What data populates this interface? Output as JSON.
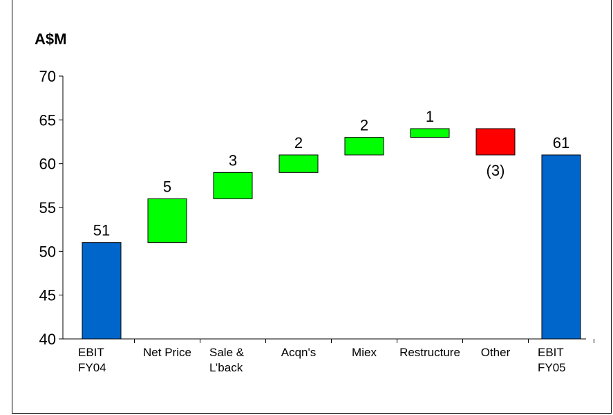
{
  "chart_data": {
    "type": "bar",
    "subtype": "waterfall",
    "unit_label": "A$M",
    "ylim": [
      40,
      70
    ],
    "yticks": [
      40,
      45,
      50,
      55,
      60,
      65,
      70
    ],
    "grid": false,
    "colors": {
      "total": "#0066CC",
      "increase": "#00FF00",
      "decrease": "#FF0000"
    },
    "bars": [
      {
        "category": [
          "EBIT",
          "FY04"
        ],
        "kind": "total",
        "start": 40,
        "end": 51,
        "label": "51",
        "label_pos": "above"
      },
      {
        "category": [
          "Net Price"
        ],
        "kind": "increase",
        "start": 51,
        "end": 56,
        "label": "5",
        "label_pos": "above"
      },
      {
        "category": [
          "Sale &",
          "L’back"
        ],
        "kind": "increase",
        "start": 56,
        "end": 59,
        "label": "3",
        "label_pos": "above"
      },
      {
        "category": [
          "Acqn's"
        ],
        "kind": "increase",
        "start": 59,
        "end": 61,
        "label": "2",
        "label_pos": "above"
      },
      {
        "category": [
          "Miex"
        ],
        "kind": "increase",
        "start": 61,
        "end": 63,
        "label": "2",
        "label_pos": "above"
      },
      {
        "category": [
          "Restructure"
        ],
        "kind": "increase",
        "start": 63,
        "end": 64,
        "label": "1",
        "label_pos": "above"
      },
      {
        "category": [
          "Other"
        ],
        "kind": "decrease",
        "start": 64,
        "end": 61,
        "label": "(3)",
        "label_pos": "below"
      },
      {
        "category": [
          "EBIT",
          "FY05"
        ],
        "kind": "total",
        "start": 40,
        "end": 61,
        "label": "61",
        "label_pos": "above"
      }
    ]
  }
}
